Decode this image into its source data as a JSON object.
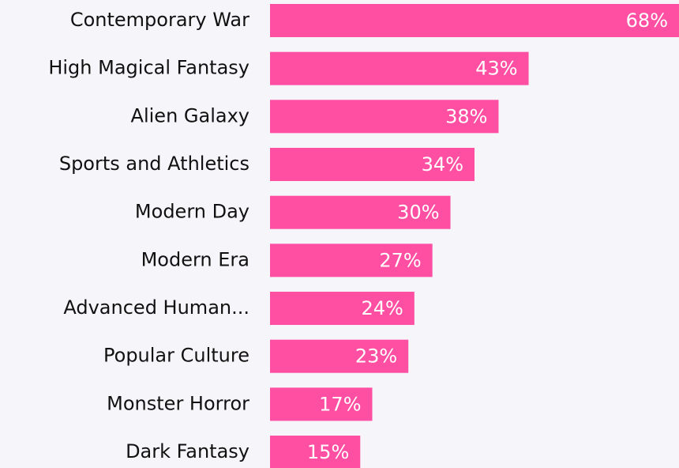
{
  "chart_data": {
    "type": "bar",
    "orientation": "horizontal",
    "color": "#ff4fa3",
    "categories": [
      "Contemporary War",
      "High Magical Fantasy",
      "Alien Galaxy",
      "Sports and Athletics",
      "Modern Day",
      "Modern Era",
      "Advanced Human...",
      "Popular Culture",
      "Monster Horror",
      "Dark Fantasy"
    ],
    "values": [
      68,
      43,
      38,
      34,
      30,
      27,
      24,
      23,
      17,
      15
    ],
    "value_labels": [
      "68%",
      "43%",
      "38%",
      "34%",
      "30%",
      "27%",
      "24%",
      "23%",
      "17%",
      "15%"
    ]
  }
}
